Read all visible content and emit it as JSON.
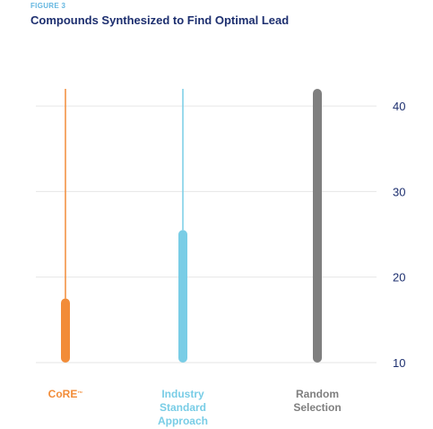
{
  "figure_label": "FIGURE 3",
  "title": "Compounds Synthesized to Find Optimal Lead",
  "colors": {
    "core": "#f28c38",
    "industry": "#79cde6",
    "random": "#7f7f7f",
    "title": "#1d2f6f",
    "tick": "#1d2f6f",
    "grid": "#e6e6e6"
  },
  "chart_data": {
    "type": "range",
    "title": "Compounds Synthesized to Find Optimal Lead",
    "xlabel": "",
    "ylabel": "",
    "ylim": [
      10,
      42
    ],
    "yticks": [
      10,
      20,
      30,
      40
    ],
    "y_axis_position": "right",
    "grid": true,
    "categories": [
      {
        "label": "CoRE",
        "mark": "™",
        "label_lines": [
          "CoRE"
        ],
        "color": "#f28c38",
        "thick_range": [
          10,
          17.5
        ],
        "thin_range": [
          17.5,
          42
        ]
      },
      {
        "label": "Industry Standard Approach",
        "mark": "",
        "label_lines": [
          "Industry",
          "Standard",
          "Approach"
        ],
        "color": "#79cde6",
        "thick_range": [
          10,
          25.5
        ],
        "thin_range": [
          25.5,
          42
        ]
      },
      {
        "label": "Random Selection",
        "mark": "",
        "label_lines": [
          "Random",
          "Selection"
        ],
        "color": "#7f7f7f",
        "thick_range": [
          10,
          42
        ],
        "thin_range": [
          42,
          42
        ]
      }
    ]
  }
}
